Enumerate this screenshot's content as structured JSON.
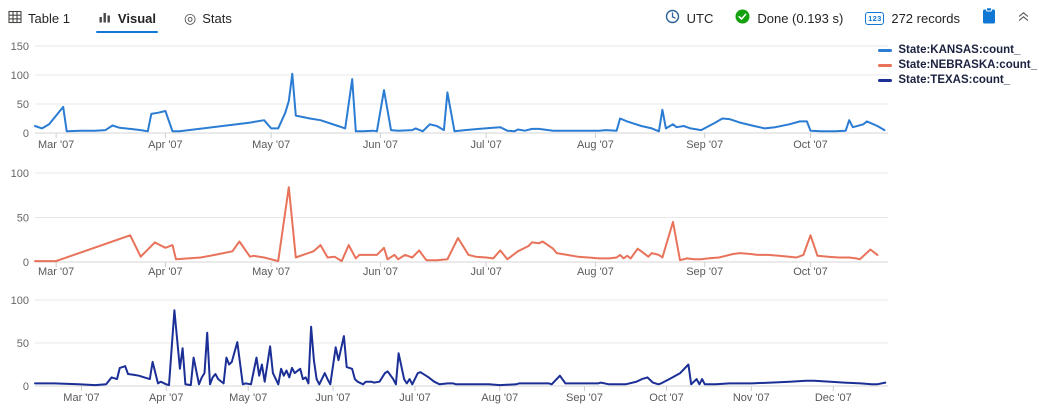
{
  "toolbar": {
    "tabs": [
      {
        "label": "Table 1",
        "icon": "table-icon"
      },
      {
        "label": "Visual",
        "icon": "bar-chart-icon",
        "active": true
      },
      {
        "label": "Stats",
        "icon": "stats-icon"
      }
    ],
    "active_tab": "Visual",
    "accent_color": "#1077d5",
    "timezone": "UTC",
    "status": "Done (0.193 s)",
    "status_color": "#13a10e",
    "records": "272 records",
    "records_icon_text": "123"
  },
  "legend": {
    "items": [
      {
        "label": "State:KANSAS:count_",
        "color": "#2b7cd3"
      },
      {
        "label": "State:NEBRASKA:count_",
        "color": "#e8735a"
      },
      {
        "label": "State:TEXAS:count_",
        "color": "#1b2f96"
      }
    ]
  },
  "chart_data": [
    {
      "type": "line",
      "id": "kansas",
      "series_name": "State:KANSAS:count_",
      "color": "#2b7cd3",
      "x_unit": "day-of-year 2007",
      "x_domain": [
        54,
        296
      ],
      "ylim": [
        0,
        150
      ],
      "y_ticks": [
        0,
        50,
        100,
        150
      ],
      "x_ticks": [
        [
          60,
          "Mar '07"
        ],
        [
          91,
          "Apr '07"
        ],
        [
          121,
          "May '07"
        ],
        [
          152,
          "Jun '07"
        ],
        [
          182,
          "Jul '07"
        ],
        [
          213,
          "Aug '07"
        ],
        [
          244,
          "Sep '07"
        ],
        [
          274,
          "Oct '07"
        ]
      ],
      "grid": true,
      "points": [
        [
          54,
          12
        ],
        [
          56,
          8
        ],
        [
          58,
          15
        ],
        [
          62,
          45
        ],
        [
          63,
          3
        ],
        [
          67,
          4
        ],
        [
          71,
          4
        ],
        [
          74,
          5
        ],
        [
          76,
          13
        ],
        [
          78,
          9
        ],
        [
          81,
          7
        ],
        [
          84,
          5
        ],
        [
          86,
          3
        ],
        [
          87,
          33
        ],
        [
          89,
          35
        ],
        [
          91,
          38
        ],
        [
          93,
          3
        ],
        [
          95,
          3
        ],
        [
          115,
          18
        ],
        [
          119,
          22
        ],
        [
          121,
          8
        ],
        [
          123,
          8
        ],
        [
          125,
          35
        ],
        [
          126,
          55
        ],
        [
          127,
          102
        ],
        [
          128,
          30
        ],
        [
          132,
          25
        ],
        [
          135,
          22
        ],
        [
          140,
          12
        ],
        [
          142,
          8
        ],
        [
          144,
          93
        ],
        [
          145,
          3
        ],
        [
          147,
          3
        ],
        [
          150,
          4
        ],
        [
          151,
          3
        ],
        [
          153,
          74
        ],
        [
          155,
          5
        ],
        [
          157,
          4
        ],
        [
          161,
          5
        ],
        [
          162,
          8
        ],
        [
          164,
          3
        ],
        [
          166,
          15
        ],
        [
          168,
          12
        ],
        [
          170,
          5
        ],
        [
          171,
          70
        ],
        [
          173,
          3
        ],
        [
          176,
          5
        ],
        [
          180,
          7
        ],
        [
          184,
          9
        ],
        [
          186,
          10
        ],
        [
          188,
          4
        ],
        [
          190,
          3
        ],
        [
          191,
          6
        ],
        [
          193,
          4
        ],
        [
          195,
          7
        ],
        [
          197,
          7
        ],
        [
          201,
          4
        ],
        [
          205,
          4
        ],
        [
          211,
          4
        ],
        [
          214,
          4
        ],
        [
          216,
          5
        ],
        [
          219,
          4
        ],
        [
          220,
          25
        ],
        [
          222,
          20
        ],
        [
          226,
          12
        ],
        [
          229,
          8
        ],
        [
          231,
          3
        ],
        [
          232,
          40
        ],
        [
          233,
          8
        ],
        [
          235,
          15
        ],
        [
          236,
          10
        ],
        [
          238,
          12
        ],
        [
          240,
          8
        ],
        [
          243,
          5
        ],
        [
          247,
          18
        ],
        [
          249,
          25
        ],
        [
          251,
          24
        ],
        [
          254,
          18
        ],
        [
          258,
          12
        ],
        [
          261,
          8
        ],
        [
          264,
          10
        ],
        [
          268,
          15
        ],
        [
          271,
          20
        ],
        [
          273,
          20
        ],
        [
          274,
          4
        ],
        [
          277,
          3
        ],
        [
          281,
          3
        ],
        [
          284,
          4
        ],
        [
          285,
          22
        ],
        [
          286,
          10
        ],
        [
          289,
          15
        ],
        [
          290,
          20
        ],
        [
          293,
          12
        ],
        [
          295,
          5
        ]
      ]
    },
    {
      "type": "line",
      "id": "nebraska",
      "series_name": "State:NEBRASKA:count_",
      "color": "#e8735a",
      "x_unit": "day-of-year 2007",
      "x_domain": [
        54,
        296
      ],
      "ylim": [
        0,
        100
      ],
      "y_ticks": [
        0,
        50,
        100
      ],
      "x_ticks": [
        [
          60,
          "Mar '07"
        ],
        [
          91,
          "Apr '07"
        ],
        [
          121,
          "May '07"
        ],
        [
          152,
          "Jun '07"
        ],
        [
          182,
          "Jul '07"
        ],
        [
          213,
          "Aug '07"
        ],
        [
          244,
          "Sep '07"
        ],
        [
          274,
          "Oct '07"
        ]
      ],
      "grid": true,
      "points": [
        [
          54,
          1
        ],
        [
          60,
          1
        ],
        [
          81,
          30
        ],
        [
          84,
          6
        ],
        [
          88,
          22
        ],
        [
          91,
          16
        ],
        [
          93,
          19
        ],
        [
          94,
          3
        ],
        [
          101,
          5
        ],
        [
          105,
          8
        ],
        [
          110,
          12
        ],
        [
          112,
          23
        ],
        [
          115,
          6
        ],
        [
          116,
          7
        ],
        [
          119,
          5
        ],
        [
          121,
          3
        ],
        [
          123,
          1
        ],
        [
          126,
          84
        ],
        [
          128,
          5
        ],
        [
          130,
          8
        ],
        [
          133,
          12
        ],
        [
          135,
          19
        ],
        [
          137,
          5
        ],
        [
          139,
          6
        ],
        [
          141,
          1
        ],
        [
          143,
          19
        ],
        [
          145,
          4
        ],
        [
          146,
          8
        ],
        [
          149,
          8
        ],
        [
          151,
          8
        ],
        [
          153,
          16
        ],
        [
          154,
          3
        ],
        [
          156,
          8
        ],
        [
          157,
          3
        ],
        [
          159,
          8
        ],
        [
          161,
          5
        ],
        [
          163,
          13
        ],
        [
          165,
          2
        ],
        [
          168,
          2
        ],
        [
          171,
          3
        ],
        [
          174,
          27
        ],
        [
          177,
          8
        ],
        [
          179,
          6
        ],
        [
          182,
          5
        ],
        [
          184,
          4
        ],
        [
          186,
          13
        ],
        [
          188,
          3
        ],
        [
          191,
          12
        ],
        [
          194,
          18
        ],
        [
          195,
          22
        ],
        [
          197,
          21
        ],
        [
          198,
          23
        ],
        [
          201,
          15
        ],
        [
          202,
          10
        ],
        [
          205,
          8
        ],
        [
          208,
          6
        ],
        [
          211,
          5
        ],
        [
          214,
          4
        ],
        [
          217,
          4
        ],
        [
          219,
          5
        ],
        [
          220,
          8
        ],
        [
          221,
          4
        ],
        [
          222,
          7
        ],
        [
          223,
          4
        ],
        [
          225,
          15
        ],
        [
          226,
          12
        ],
        [
          228,
          6
        ],
        [
          229,
          10
        ],
        [
          231,
          8
        ],
        [
          232,
          5
        ],
        [
          235,
          45
        ],
        [
          237,
          2
        ],
        [
          239,
          4
        ],
        [
          241,
          3
        ],
        [
          243,
          3
        ],
        [
          245,
          4
        ],
        [
          248,
          5
        ],
        [
          250,
          7
        ],
        [
          252,
          9
        ],
        [
          254,
          10
        ],
        [
          257,
          9
        ],
        [
          259,
          8
        ],
        [
          262,
          8
        ],
        [
          265,
          7
        ],
        [
          268,
          6
        ],
        [
          270,
          5
        ],
        [
          272,
          8
        ],
        [
          274,
          30
        ],
        [
          276,
          7
        ],
        [
          279,
          6
        ],
        [
          282,
          5
        ],
        [
          285,
          5
        ],
        [
          287,
          4
        ],
        [
          288,
          3
        ],
        [
          291,
          14
        ],
        [
          293,
          8
        ]
      ]
    },
    {
      "type": "line",
      "id": "texas",
      "series_name": "State:TEXAS:count_",
      "color": "#1b2f96",
      "x_unit": "day-of-year 2007",
      "x_domain": [
        43,
        355
      ],
      "ylim": [
        0,
        100
      ],
      "y_ticks": [
        0,
        50,
        100
      ],
      "x_ticks": [
        [
          60,
          "Mar '07"
        ],
        [
          91,
          "Apr '07"
        ],
        [
          121,
          "May '07"
        ],
        [
          152,
          "Jun '07"
        ],
        [
          182,
          "Jul '07"
        ],
        [
          213,
          "Aug '07"
        ],
        [
          244,
          "Sep '07"
        ],
        [
          274,
          "Oct '07"
        ],
        [
          305,
          "Nov '07"
        ],
        [
          335,
          "Dec '07"
        ]
      ],
      "grid": true,
      "points": [
        [
          43,
          3
        ],
        [
          50,
          3
        ],
        [
          59,
          2
        ],
        [
          65,
          1
        ],
        [
          69,
          2
        ],
        [
          71,
          10
        ],
        [
          73,
          8
        ],
        [
          74,
          21
        ],
        [
          76,
          23
        ],
        [
          77,
          14
        ],
        [
          79,
          13
        ],
        [
          81,
          12
        ],
        [
          83,
          10
        ],
        [
          85,
          8
        ],
        [
          86,
          28
        ],
        [
          88,
          3
        ],
        [
          89,
          5
        ],
        [
          91,
          2
        ],
        [
          92,
          1
        ],
        [
          94,
          88
        ],
        [
          96,
          20
        ],
        [
          97,
          44
        ],
        [
          98,
          2
        ],
        [
          100,
          1
        ],
        [
          101,
          33
        ],
        [
          103,
          2
        ],
        [
          104,
          10
        ],
        [
          105,
          15
        ],
        [
          106,
          62
        ],
        [
          107,
          2
        ],
        [
          108,
          10
        ],
        [
          109,
          14
        ],
        [
          110,
          8
        ],
        [
          112,
          3
        ],
        [
          113,
          33
        ],
        [
          114,
          25
        ],
        [
          115,
          28
        ],
        [
          117,
          51
        ],
        [
          119,
          2
        ],
        [
          120,
          3
        ],
        [
          122,
          2
        ],
        [
          124,
          33
        ],
        [
          125,
          12
        ],
        [
          126,
          25
        ],
        [
          127,
          5
        ],
        [
          129,
          46
        ],
        [
          130,
          15
        ],
        [
          132,
          2
        ],
        [
          133,
          20
        ],
        [
          134,
          12
        ],
        [
          135,
          18
        ],
        [
          136,
          10
        ],
        [
          137,
          21
        ],
        [
          138,
          15
        ],
        [
          140,
          20
        ],
        [
          141,
          8
        ],
        [
          142,
          10
        ],
        [
          143,
          3
        ],
        [
          144,
          69
        ],
        [
          145,
          30
        ],
        [
          146,
          8
        ],
        [
          147,
          2
        ],
        [
          149,
          15
        ],
        [
          150,
          8
        ],
        [
          151,
          2
        ],
        [
          153,
          45
        ],
        [
          154,
          30
        ],
        [
          156,
          58
        ],
        [
          157,
          22
        ],
        [
          159,
          20
        ],
        [
          160,
          8
        ],
        [
          161,
          5
        ],
        [
          163,
          2
        ],
        [
          164,
          5
        ],
        [
          166,
          5
        ],
        [
          167,
          4
        ],
        [
          169,
          5
        ],
        [
          171,
          15
        ],
        [
          172,
          17
        ],
        [
          174,
          8
        ],
        [
          175,
          2
        ],
        [
          176,
          38
        ],
        [
          178,
          8
        ],
        [
          179,
          3
        ],
        [
          180,
          8
        ],
        [
          181,
          2
        ],
        [
          183,
          15
        ],
        [
          184,
          16
        ],
        [
          186,
          12
        ],
        [
          187,
          10
        ],
        [
          189,
          5
        ],
        [
          191,
          2
        ],
        [
          194,
          3
        ],
        [
          196,
          3
        ],
        [
          197,
          2
        ],
        [
          202,
          2
        ],
        [
          209,
          2
        ],
        [
          213,
          1
        ],
        [
          219,
          2
        ],
        [
          220,
          3
        ],
        [
          226,
          3
        ],
        [
          231,
          3
        ],
        [
          232,
          2
        ],
        [
          235,
          12
        ],
        [
          237,
          3
        ],
        [
          242,
          3
        ],
        [
          249,
          3
        ],
        [
          250,
          4
        ],
        [
          253,
          2
        ],
        [
          259,
          2
        ],
        [
          263,
          5
        ],
        [
          265,
          8
        ],
        [
          267,
          10
        ],
        [
          269,
          4
        ],
        [
          271,
          2
        ],
        [
          272,
          3
        ],
        [
          275,
          8
        ],
        [
          279,
          15
        ],
        [
          282,
          25
        ],
        [
          283,
          2
        ],
        [
          285,
          8
        ],
        [
          286,
          2
        ],
        [
          287,
          8
        ],
        [
          288,
          2
        ],
        [
          292,
          2
        ],
        [
          297,
          3
        ],
        [
          305,
          3
        ],
        [
          312,
          4
        ],
        [
          319,
          5
        ],
        [
          325,
          6
        ],
        [
          328,
          6
        ],
        [
          334,
          5
        ],
        [
          339,
          4
        ],
        [
          345,
          3
        ],
        [
          349,
          2
        ],
        [
          351,
          2
        ],
        [
          354,
          4
        ]
      ]
    }
  ]
}
